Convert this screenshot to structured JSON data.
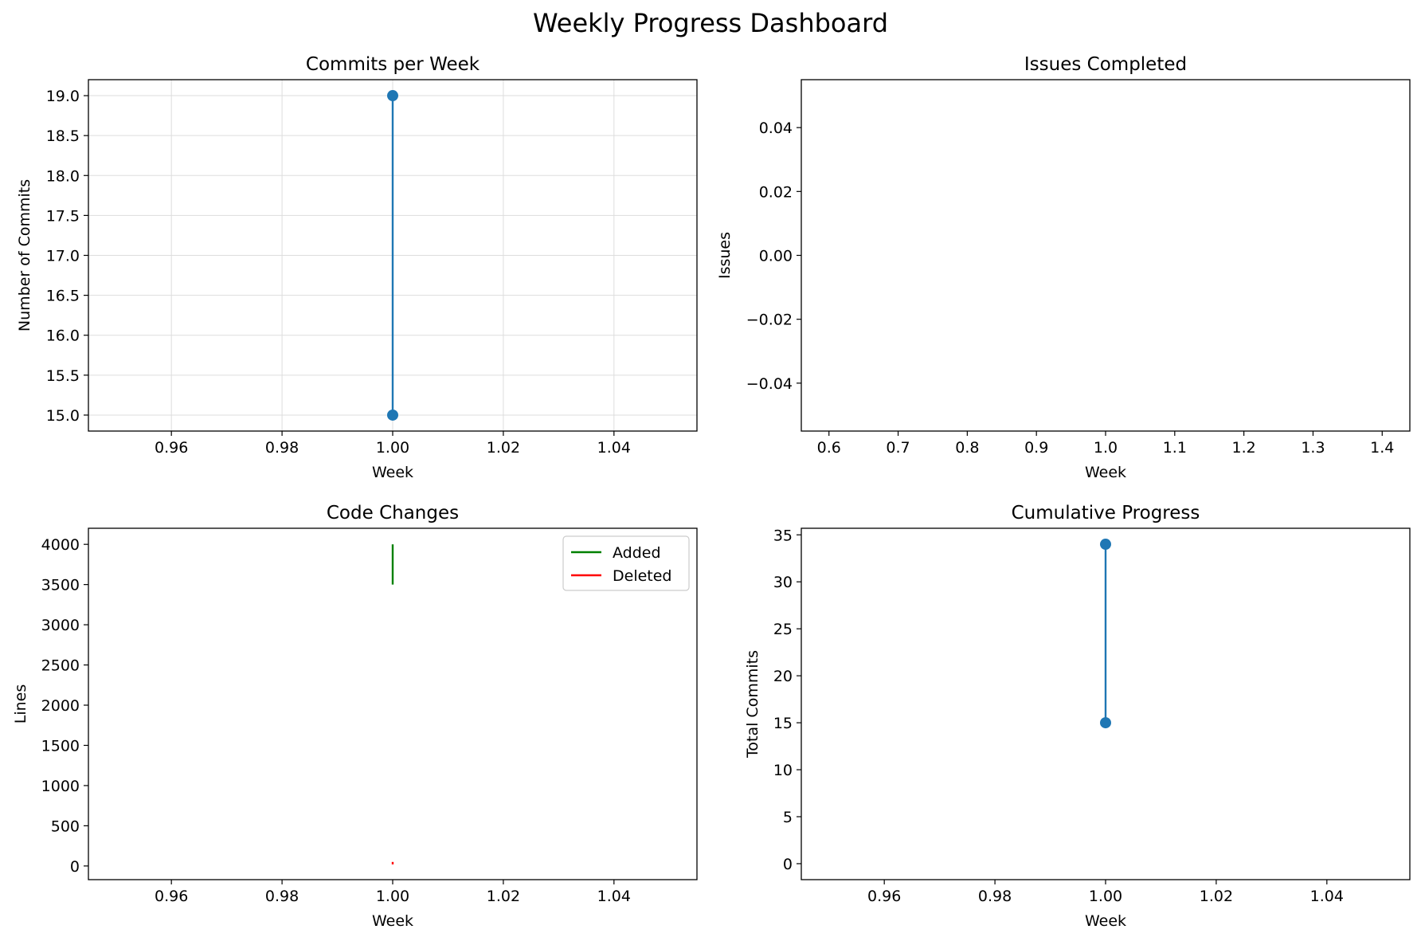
{
  "figure": {
    "title": "Weekly Progress Dashboard"
  },
  "colors": {
    "blue": "#1f77b4",
    "green": "#008000",
    "red": "#ff0000",
    "grid": "#dddddd"
  },
  "chart_data": [
    {
      "id": "commits",
      "type": "line",
      "title": "Commits per Week",
      "xlabel": "Week",
      "ylabel": "Number of Commits",
      "xlim": [
        0.945,
        1.055
      ],
      "ylim": [
        14.8,
        19.2
      ],
      "xticks": [
        0.96,
        0.98,
        1.0,
        1.02,
        1.04
      ],
      "xtick_labels": [
        "0.96",
        "0.98",
        "1.00",
        "1.02",
        "1.04"
      ],
      "yticks": [
        15.0,
        15.5,
        16.0,
        16.5,
        17.0,
        17.5,
        18.0,
        18.5,
        19.0
      ],
      "ytick_labels": [
        "15.0",
        "15.5",
        "16.0",
        "16.5",
        "17.0",
        "17.5",
        "18.0",
        "18.5",
        "19.0"
      ],
      "grid": true,
      "series": [
        {
          "x": [
            1.0,
            1.0
          ],
          "y": [
            19,
            15
          ],
          "color": "#1f77b4",
          "markers": true
        }
      ]
    },
    {
      "id": "issues",
      "type": "line",
      "title": "Issues Completed",
      "xlabel": "Week",
      "ylabel": "Issues",
      "xlim": [
        0.56,
        1.44
      ],
      "ylim": [
        -0.055,
        0.055
      ],
      "xticks": [
        0.6,
        0.7,
        0.8,
        0.9,
        1.0,
        1.1,
        1.2,
        1.3,
        1.4
      ],
      "xtick_labels": [
        "0.6",
        "0.7",
        "0.8",
        "0.9",
        "1.0",
        "1.1",
        "1.2",
        "1.3",
        "1.4"
      ],
      "yticks": [
        -0.04,
        -0.02,
        0.0,
        0.02,
        0.04
      ],
      "ytick_labels": [
        "−0.04",
        "−0.02",
        "0.00",
        "0.02",
        "0.04"
      ],
      "grid": false,
      "series": []
    },
    {
      "id": "code",
      "type": "line",
      "title": "Code Changes",
      "xlabel": "Week",
      "ylabel": "Lines",
      "xlim": [
        0.945,
        1.055
      ],
      "ylim": [
        -170,
        4200
      ],
      "xticks": [
        0.96,
        0.98,
        1.0,
        1.02,
        1.04
      ],
      "xtick_labels": [
        "0.96",
        "0.98",
        "1.00",
        "1.02",
        "1.04"
      ],
      "yticks": [
        0,
        500,
        1000,
        1500,
        2000,
        2500,
        3000,
        3500,
        4000
      ],
      "ytick_labels": [
        "0",
        "500",
        "1000",
        "1500",
        "2000",
        "2500",
        "3000",
        "3500",
        "4000"
      ],
      "grid": false,
      "legend": {
        "placement": "top-right",
        "entries": [
          "Added",
          "Deleted"
        ]
      },
      "series": [
        {
          "name": "Added",
          "x": [
            1.0,
            1.0
          ],
          "y": [
            4000,
            3500
          ],
          "color": "#008000",
          "markers": false
        },
        {
          "name": "Deleted",
          "x": [
            1.0,
            1.0
          ],
          "y": [
            50,
            20
          ],
          "color": "#ff0000",
          "markers": false
        }
      ]
    },
    {
      "id": "cumulative",
      "type": "line",
      "title": "Cumulative Progress",
      "xlabel": "Week",
      "ylabel": "Total Commits",
      "xlim": [
        0.945,
        1.055
      ],
      "ylim": [
        -1.7,
        35.7
      ],
      "xticks": [
        0.96,
        0.98,
        1.0,
        1.02,
        1.04
      ],
      "xtick_labels": [
        "0.96",
        "0.98",
        "1.00",
        "1.02",
        "1.04"
      ],
      "yticks": [
        0,
        5,
        10,
        15,
        20,
        25,
        30,
        35
      ],
      "ytick_labels": [
        "0",
        "5",
        "10",
        "15",
        "20",
        "25",
        "30",
        "35"
      ],
      "grid": false,
      "series": [
        {
          "x": [
            1.0,
            1.0
          ],
          "y": [
            34,
            15
          ],
          "color": "#1f77b4",
          "markers": true
        }
      ]
    }
  ]
}
